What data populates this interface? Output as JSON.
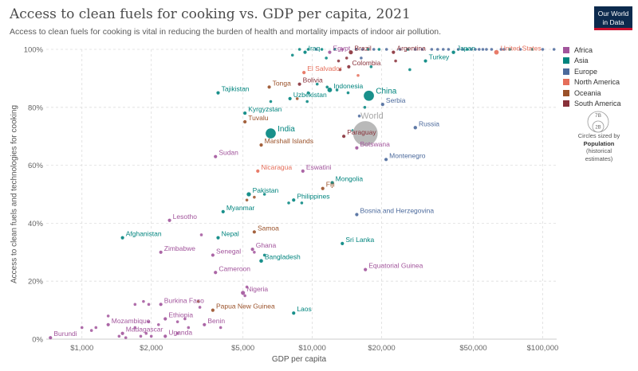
{
  "header": {
    "title": "Access to clean fuels for cooking vs. GDP per capita, 2021",
    "subtitle": "Access to clean fuels for cooking is vital in reducing the burden of health and mortality impacts of indoor air pollution.",
    "logo_line1": "Our World",
    "logo_line2": "in Data"
  },
  "legend": {
    "items": [
      {
        "label": "Africa",
        "color": "#a2559c"
      },
      {
        "label": "Asia",
        "color": "#00847e"
      },
      {
        "label": "Europe",
        "color": "#4c6a9c"
      },
      {
        "label": "North America",
        "color": "#e56e5a"
      },
      {
        "label": "Oceania",
        "color": "#9a5129"
      },
      {
        "label": "South America",
        "color": "#883039"
      }
    ],
    "size_big": "7B",
    "size_small": "2B",
    "size_note_1": "Circles sized by",
    "size_note_2": "Population",
    "size_note_3": "(historical",
    "size_note_4": "estimates)"
  },
  "chart_data": {
    "type": "scatter",
    "title": "Access to clean fuels for cooking vs. GDP per capita, 2021",
    "xlabel": "GDP per capita",
    "ylabel": "Access to clean fuels and technologies for cooking",
    "x_scale": "log",
    "xlim": [
      700,
      115000
    ],
    "ylim": [
      0,
      100
    ],
    "x_ticks": [
      1000,
      2000,
      5000,
      10000,
      20000,
      50000,
      100000
    ],
    "x_tick_labels": [
      "$1,000",
      "$2,000",
      "$5,000",
      "$10,000",
      "$20,000",
      "$50,000",
      "$100,000"
    ],
    "y_ticks": [
      0,
      20,
      40,
      60,
      80,
      100
    ],
    "y_tick_labels": [
      "0%",
      "20%",
      "40%",
      "60%",
      "80%",
      "100%"
    ],
    "grid": true,
    "legend_position": "right",
    "region_colors": {
      "Africa": "#a2559c",
      "Asia": "#00847e",
      "Europe": "#4c6a9c",
      "North America": "#e56e5a",
      "Oceania": "#9a5129",
      "South America": "#883039",
      "World": "#a8a8a8"
    },
    "labeled_points": [
      {
        "label": "Iraq",
        "x": 9300,
        "y": 99,
        "region": "Asia"
      },
      {
        "label": "Egypt",
        "x": 11900,
        "y": 99,
        "region": "Africa"
      },
      {
        "label": "Brazil",
        "x": 14700,
        "y": 99,
        "region": "South America"
      },
      {
        "label": "Argentina",
        "x": 22500,
        "y": 99,
        "region": "South America"
      },
      {
        "label": "Japan",
        "x": 41000,
        "y": 99,
        "region": "Asia"
      },
      {
        "label": "United States",
        "x": 63000,
        "y": 99,
        "region": "North America"
      },
      {
        "label": "Turkey",
        "x": 31000,
        "y": 96,
        "region": "Asia"
      },
      {
        "label": "Colombia",
        "x": 14400,
        "y": 94,
        "region": "South America"
      },
      {
        "label": "El Salvador",
        "x": 9200,
        "y": 92,
        "region": "North America"
      },
      {
        "label": "Bolivia",
        "x": 8800,
        "y": 88,
        "region": "South America"
      },
      {
        "label": "Indonesia",
        "x": 11900,
        "y": 86,
        "region": "Asia"
      },
      {
        "label": "Tonga",
        "x": 6500,
        "y": 87,
        "region": "Oceania"
      },
      {
        "label": "Tajikistan",
        "x": 3900,
        "y": 85,
        "region": "Asia"
      },
      {
        "label": "China",
        "x": 17600,
        "y": 84,
        "region": "Asia"
      },
      {
        "label": "Uzbekistan",
        "x": 8000,
        "y": 83,
        "region": "Asia"
      },
      {
        "label": "Serbia",
        "x": 20200,
        "y": 81,
        "region": "Europe"
      },
      {
        "label": "Kyrgyzstan",
        "x": 5100,
        "y": 78,
        "region": "Asia"
      },
      {
        "label": "Tuvalu",
        "x": 5100,
        "y": 75,
        "region": "Oceania"
      },
      {
        "label": "Russia",
        "x": 28000,
        "y": 73,
        "region": "Europe"
      },
      {
        "label": "India",
        "x": 6600,
        "y": 71,
        "region": "Asia"
      },
      {
        "label": "World",
        "x": 17000,
        "y": 71,
        "region": "World"
      },
      {
        "label": "Paraguay",
        "x": 13700,
        "y": 70,
        "region": "South America"
      },
      {
        "label": "Botswana",
        "x": 15600,
        "y": 66,
        "region": "Africa"
      },
      {
        "label": "Marshall Islands",
        "x": 6000,
        "y": 67,
        "region": "Oceania"
      },
      {
        "label": "Sudan",
        "x": 3800,
        "y": 63,
        "region": "Africa"
      },
      {
        "label": "Montenegro",
        "x": 20900,
        "y": 62,
        "region": "Europe"
      },
      {
        "label": "Eswatini",
        "x": 9100,
        "y": 58,
        "region": "Africa"
      },
      {
        "label": "Nicaragua",
        "x": 5800,
        "y": 58,
        "region": "North America"
      },
      {
        "label": "Mongolia",
        "x": 12200,
        "y": 54,
        "region": "Asia"
      },
      {
        "label": "Fiji",
        "x": 11100,
        "y": 52,
        "region": "Oceania"
      },
      {
        "label": "Pakistan",
        "x": 5300,
        "y": 50,
        "region": "Asia"
      },
      {
        "label": "Philippines",
        "x": 8300,
        "y": 48,
        "region": "Asia"
      },
      {
        "label": "Myanmar",
        "x": 4100,
        "y": 44,
        "region": "Asia"
      },
      {
        "label": "Lesotho",
        "x": 2400,
        "y": 41,
        "region": "Africa"
      },
      {
        "label": "Bosnia and Herzegovina",
        "x": 15600,
        "y": 43,
        "region": "Europe"
      },
      {
        "label": "Samoa",
        "x": 5600,
        "y": 37,
        "region": "Oceania"
      },
      {
        "label": "Afghanistan",
        "x": 1500,
        "y": 35,
        "region": "Asia"
      },
      {
        "label": "Nepal",
        "x": 3900,
        "y": 35,
        "region": "Asia"
      },
      {
        "label": "Sri Lanka",
        "x": 13500,
        "y": 33,
        "region": "Asia"
      },
      {
        "label": "Zimbabwe",
        "x": 2200,
        "y": 30,
        "region": "Africa"
      },
      {
        "label": "Senegal",
        "x": 3700,
        "y": 29,
        "region": "Africa"
      },
      {
        "label": "Ghana",
        "x": 5500,
        "y": 31,
        "region": "Africa"
      },
      {
        "label": "Bangladesh",
        "x": 6000,
        "y": 27,
        "region": "Asia"
      },
      {
        "label": "Equatorial Guinea",
        "x": 17000,
        "y": 24,
        "region": "Africa"
      },
      {
        "label": "Cameroon",
        "x": 3800,
        "y": 23,
        "region": "Africa"
      },
      {
        "label": "Nigeria",
        "x": 5000,
        "y": 16,
        "region": "Africa"
      },
      {
        "label": "Burkina Faso",
        "x": 2200,
        "y": 12,
        "region": "Africa"
      },
      {
        "label": "Papua New Guinea",
        "x": 3700,
        "y": 10,
        "region": "Oceania"
      },
      {
        "label": "Laos",
        "x": 8300,
        "y": 9,
        "region": "Asia"
      },
      {
        "label": "Ethiopia",
        "x": 2300,
        "y": 7,
        "region": "Africa"
      },
      {
        "label": "Mozambique",
        "x": 1300,
        "y": 5,
        "region": "Africa"
      },
      {
        "label": "Benin",
        "x": 3400,
        "y": 5,
        "region": "Africa"
      },
      {
        "label": "Madagascar",
        "x": 1500,
        "y": 2,
        "region": "Africa"
      },
      {
        "label": "Uganda",
        "x": 2300,
        "y": 1,
        "region": "Africa"
      },
      {
        "label": "Burundi",
        "x": 730,
        "y": 0.5,
        "region": "Africa"
      }
    ],
    "population_billions": {
      "China": 1.43,
      "India": 1.41,
      "World": 7.9,
      "Indonesia": 0.27,
      "Pakistan": 0.23,
      "Nigeria": 0.21,
      "Brazil": 0.21,
      "Bangladesh": 0.17,
      "Russia": 0.14,
      "United States": 0.33,
      "Japan": 0.13
    },
    "unlabeled_points": [
      {
        "x": 8200,
        "y": 98,
        "region": "Asia"
      },
      {
        "x": 8800,
        "y": 100,
        "region": "Asia"
      },
      {
        "x": 9600,
        "y": 100,
        "region": "Asia"
      },
      {
        "x": 10400,
        "y": 100,
        "region": "Europe"
      },
      {
        "x": 11000,
        "y": 100,
        "region": "Asia"
      },
      {
        "x": 12500,
        "y": 100,
        "region": "Asia"
      },
      {
        "x": 13500,
        "y": 100,
        "region": "Africa"
      },
      {
        "x": 15500,
        "y": 100,
        "region": "Europe"
      },
      {
        "x": 16500,
        "y": 100,
        "region": "Europe"
      },
      {
        "x": 17500,
        "y": 100,
        "region": "Asia"
      },
      {
        "x": 18500,
        "y": 100,
        "region": "Europe"
      },
      {
        "x": 19500,
        "y": 100,
        "region": "Asia"
      },
      {
        "x": 21000,
        "y": 100,
        "region": "Europe"
      },
      {
        "x": 24000,
        "y": 100,
        "region": "Europe"
      },
      {
        "x": 26000,
        "y": 100,
        "region": "Asia"
      },
      {
        "x": 28000,
        "y": 100,
        "region": "Europe"
      },
      {
        "x": 30000,
        "y": 100,
        "region": "Europe"
      },
      {
        "x": 33000,
        "y": 100,
        "region": "Europe"
      },
      {
        "x": 35000,
        "y": 100,
        "region": "Europe"
      },
      {
        "x": 37000,
        "y": 100,
        "region": "Europe"
      },
      {
        "x": 39000,
        "y": 100,
        "region": "Europe"
      },
      {
        "x": 43000,
        "y": 100,
        "region": "Europe"
      },
      {
        "x": 45000,
        "y": 100,
        "region": "Europe"
      },
      {
        "x": 47000,
        "y": 100,
        "region": "Asia"
      },
      {
        "x": 49000,
        "y": 100,
        "region": "Europe"
      },
      {
        "x": 51000,
        "y": 100,
        "region": "Europe"
      },
      {
        "x": 53000,
        "y": 100,
        "region": "Europe"
      },
      {
        "x": 55000,
        "y": 100,
        "region": "Europe"
      },
      {
        "x": 57000,
        "y": 100,
        "region": "Europe"
      },
      {
        "x": 60000,
        "y": 100,
        "region": "Europe"
      },
      {
        "x": 66000,
        "y": 100,
        "region": "Europe"
      },
      {
        "x": 68000,
        "y": 100,
        "region": "Europe"
      },
      {
        "x": 72000,
        "y": 100,
        "region": "Asia"
      },
      {
        "x": 80000,
        "y": 100,
        "region": "Europe"
      },
      {
        "x": 90000,
        "y": 100,
        "region": "Asia"
      },
      {
        "x": 100000,
        "y": 100,
        "region": "Europe"
      },
      {
        "x": 112000,
        "y": 100,
        "region": "Europe"
      },
      {
        "x": 11500,
        "y": 97,
        "region": "Asia"
      },
      {
        "x": 13000,
        "y": 96,
        "region": "South America"
      },
      {
        "x": 14100,
        "y": 97,
        "region": "South America"
      },
      {
        "x": 16300,
        "y": 97,
        "region": "Europe"
      },
      {
        "x": 18000,
        "y": 94,
        "region": "Asia"
      },
      {
        "x": 23000,
        "y": 96,
        "region": "South America"
      },
      {
        "x": 26500,
        "y": 93,
        "region": "Asia"
      },
      {
        "x": 13200,
        "y": 93,
        "region": "South America"
      },
      {
        "x": 15800,
        "y": 91,
        "region": "North America"
      },
      {
        "x": 10500,
        "y": 88,
        "region": "Asia"
      },
      {
        "x": 11600,
        "y": 87,
        "region": "Asia"
      },
      {
        "x": 12800,
        "y": 86,
        "region": "Asia"
      },
      {
        "x": 14300,
        "y": 85,
        "region": "Asia"
      },
      {
        "x": 16900,
        "y": 80,
        "region": "Asia"
      },
      {
        "x": 9600,
        "y": 85,
        "region": "Asia"
      },
      {
        "x": 8600,
        "y": 83,
        "region": "Oceania"
      },
      {
        "x": 9500,
        "y": 82,
        "region": "Asia"
      },
      {
        "x": 6600,
        "y": 82,
        "region": "Asia"
      },
      {
        "x": 16000,
        "y": 77,
        "region": "Europe"
      },
      {
        "x": 15000,
        "y": 72,
        "region": "Asia"
      },
      {
        "x": 5600,
        "y": 49,
        "region": "Oceania"
      },
      {
        "x": 6200,
        "y": 50,
        "region": "Asia"
      },
      {
        "x": 5200,
        "y": 48,
        "region": "Oceania"
      },
      {
        "x": 9000,
        "y": 47,
        "region": "Asia"
      },
      {
        "x": 7900,
        "y": 47,
        "region": "Asia"
      },
      {
        "x": 3300,
        "y": 36,
        "region": "Africa"
      },
      {
        "x": 5600,
        "y": 30,
        "region": "Africa"
      },
      {
        "x": 6200,
        "y": 29,
        "region": "Asia"
      },
      {
        "x": 5200,
        "y": 18,
        "region": "Africa"
      },
      {
        "x": 5100,
        "y": 15,
        "region": "Africa"
      },
      {
        "x": 1850,
        "y": 13,
        "region": "Africa"
      },
      {
        "x": 1950,
        "y": 12,
        "region": "Africa"
      },
      {
        "x": 3200,
        "y": 13,
        "region": "Oceania"
      },
      {
        "x": 3250,
        "y": 11,
        "region": "Africa"
      },
      {
        "x": 1700,
        "y": 12,
        "region": "Africa"
      },
      {
        "x": 1000,
        "y": 4,
        "region": "Africa"
      },
      {
        "x": 1100,
        "y": 3,
        "region": "Africa"
      },
      {
        "x": 1150,
        "y": 4,
        "region": "Africa"
      },
      {
        "x": 1300,
        "y": 8,
        "region": "Africa"
      },
      {
        "x": 1700,
        "y": 4,
        "region": "Africa"
      },
      {
        "x": 1950,
        "y": 6,
        "region": "Africa"
      },
      {
        "x": 2150,
        "y": 5,
        "region": "Africa"
      },
      {
        "x": 2600,
        "y": 6,
        "region": "Africa"
      },
      {
        "x": 2800,
        "y": 7,
        "region": "Africa"
      },
      {
        "x": 2900,
        "y": 4,
        "region": "Africa"
      },
      {
        "x": 4000,
        "y": 4,
        "region": "Africa"
      },
      {
        "x": 1450,
        "y": 1,
        "region": "Africa"
      },
      {
        "x": 1800,
        "y": 1,
        "region": "Africa"
      },
      {
        "x": 1900,
        "y": 2,
        "region": "Africa"
      },
      {
        "x": 2600,
        "y": 2,
        "region": "Africa"
      },
      {
        "x": 2000,
        "y": 1,
        "region": "Africa"
      },
      {
        "x": 1550,
        "y": 0.5,
        "region": "Africa"
      }
    ]
  }
}
